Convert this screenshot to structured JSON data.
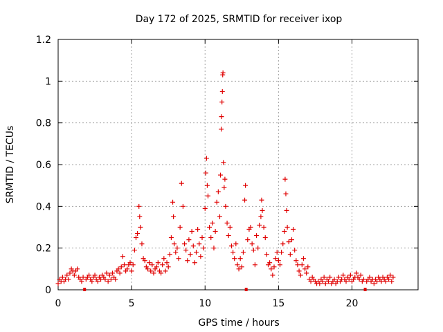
{
  "chart_data": {
    "type": "scatter",
    "title": "Day 172 of 2025, SRMTID for receiver ixop",
    "xlabel": "GPS time / hours",
    "ylabel": "SRMTID / TECUs",
    "xlim": [
      0,
      24.5
    ],
    "ylim": [
      0,
      1.2
    ],
    "xticks": [
      0,
      5,
      10,
      15,
      20
    ],
    "xtick_labels": [
      "0",
      "5",
      "10",
      "15",
      "20"
    ],
    "yticks": [
      0,
      0.2,
      0.4,
      0.6,
      0.8,
      1.0,
      1.2
    ],
    "ytick_labels": [
      "0",
      "0.2",
      "0.4",
      "0.6",
      "0.8",
      "1",
      "1.2"
    ],
    "grid": true,
    "marker": "+",
    "color": "#e00000",
    "gap_markers_x": [
      1.8,
      12.8,
      20.9
    ],
    "series": [
      {
        "name": "SRMTID",
        "points": [
          [
            0.0,
            0.03
          ],
          [
            0.1,
            0.05
          ],
          [
            0.2,
            0.04
          ],
          [
            0.3,
            0.06
          ],
          [
            0.4,
            0.04
          ],
          [
            0.5,
            0.05
          ],
          [
            0.6,
            0.07
          ],
          [
            0.7,
            0.05
          ],
          [
            0.8,
            0.08
          ],
          [
            0.9,
            0.1
          ],
          [
            1.0,
            0.09
          ],
          [
            1.1,
            0.07
          ],
          [
            1.2,
            0.09
          ],
          [
            1.3,
            0.1
          ],
          [
            1.4,
            0.06
          ],
          [
            1.5,
            0.05
          ],
          [
            1.6,
            0.04
          ],
          [
            1.7,
            0.06
          ],
          [
            1.9,
            0.05
          ],
          [
            2.0,
            0.06
          ],
          [
            2.1,
            0.07
          ],
          [
            2.2,
            0.05
          ],
          [
            2.3,
            0.04
          ],
          [
            2.4,
            0.06
          ],
          [
            2.5,
            0.07
          ],
          [
            2.6,
            0.05
          ],
          [
            2.7,
            0.04
          ],
          [
            2.8,
            0.06
          ],
          [
            2.9,
            0.05
          ],
          [
            3.0,
            0.07
          ],
          [
            3.1,
            0.06
          ],
          [
            3.2,
            0.05
          ],
          [
            3.3,
            0.08
          ],
          [
            3.4,
            0.04
          ],
          [
            3.5,
            0.07
          ],
          [
            3.6,
            0.05
          ],
          [
            3.7,
            0.08
          ],
          [
            3.8,
            0.06
          ],
          [
            3.9,
            0.05
          ],
          [
            4.0,
            0.09
          ],
          [
            4.1,
            0.1
          ],
          [
            4.2,
            0.08
          ],
          [
            4.3,
            0.11
          ],
          [
            4.4,
            0.16
          ],
          [
            4.5,
            0.12
          ],
          [
            4.6,
            0.09
          ],
          [
            4.7,
            0.1
          ],
          [
            4.8,
            0.12
          ],
          [
            4.9,
            0.13
          ],
          [
            5.0,
            0.09
          ],
          [
            5.1,
            0.12
          ],
          [
            5.2,
            0.19
          ],
          [
            5.3,
            0.25
          ],
          [
            5.4,
            0.27
          ],
          [
            5.5,
            0.4
          ],
          [
            5.55,
            0.35
          ],
          [
            5.6,
            0.3
          ],
          [
            5.7,
            0.22
          ],
          [
            5.8,
            0.15
          ],
          [
            5.9,
            0.14
          ],
          [
            6.0,
            0.11
          ],
          [
            6.1,
            0.1
          ],
          [
            6.2,
            0.13
          ],
          [
            6.3,
            0.09
          ],
          [
            6.4,
            0.12
          ],
          [
            6.5,
            0.08
          ],
          [
            6.6,
            0.1
          ],
          [
            6.7,
            0.11
          ],
          [
            6.8,
            0.13
          ],
          [
            6.9,
            0.09
          ],
          [
            7.0,
            0.08
          ],
          [
            7.1,
            0.12
          ],
          [
            7.2,
            0.15
          ],
          [
            7.3,
            0.09
          ],
          [
            7.4,
            0.13
          ],
          [
            7.5,
            0.11
          ],
          [
            7.6,
            0.17
          ],
          [
            7.7,
            0.25
          ],
          [
            7.8,
            0.42
          ],
          [
            7.85,
            0.35
          ],
          [
            7.9,
            0.22
          ],
          [
            8.0,
            0.18
          ],
          [
            8.1,
            0.2
          ],
          [
            8.2,
            0.15
          ],
          [
            8.3,
            0.3
          ],
          [
            8.4,
            0.51
          ],
          [
            8.5,
            0.4
          ],
          [
            8.6,
            0.22
          ],
          [
            8.7,
            0.19
          ],
          [
            8.8,
            0.14
          ],
          [
            8.9,
            0.24
          ],
          [
            9.0,
            0.17
          ],
          [
            9.1,
            0.28
          ],
          [
            9.2,
            0.21
          ],
          [
            9.3,
            0.13
          ],
          [
            9.4,
            0.18
          ],
          [
            9.5,
            0.29
          ],
          [
            9.6,
            0.22
          ],
          [
            9.7,
            0.16
          ],
          [
            9.8,
            0.25
          ],
          [
            9.9,
            0.2
          ],
          [
            10.0,
            0.39
          ],
          [
            10.05,
            0.56
          ],
          [
            10.1,
            0.63
          ],
          [
            10.15,
            0.5
          ],
          [
            10.2,
            0.45
          ],
          [
            10.3,
            0.3
          ],
          [
            10.4,
            0.25
          ],
          [
            10.5,
            0.32
          ],
          [
            10.6,
            0.2
          ],
          [
            10.7,
            0.28
          ],
          [
            10.8,
            0.42
          ],
          [
            10.9,
            0.47
          ],
          [
            11.0,
            0.35
          ],
          [
            11.05,
            0.55
          ],
          [
            11.1,
            0.77
          ],
          [
            11.12,
            0.83
          ],
          [
            11.15,
            0.9
          ],
          [
            11.18,
            0.95
          ],
          [
            11.2,
            1.03
          ],
          [
            11.22,
            1.04
          ],
          [
            11.25,
            0.61
          ],
          [
            11.3,
            0.49
          ],
          [
            11.35,
            0.53
          ],
          [
            11.4,
            0.4
          ],
          [
            11.5,
            0.32
          ],
          [
            11.6,
            0.26
          ],
          [
            11.7,
            0.3
          ],
          [
            11.8,
            0.21
          ],
          [
            11.9,
            0.18
          ],
          [
            12.0,
            0.15
          ],
          [
            12.1,
            0.22
          ],
          [
            12.2,
            0.12
          ],
          [
            12.3,
            0.1
          ],
          [
            12.4,
            0.15
          ],
          [
            12.5,
            0.11
          ],
          [
            12.6,
            0.18
          ],
          [
            12.7,
            0.43
          ],
          [
            12.75,
            0.5
          ],
          [
            12.9,
            0.24
          ],
          [
            13.0,
            0.29
          ],
          [
            13.1,
            0.3
          ],
          [
            13.2,
            0.22
          ],
          [
            13.3,
            0.19
          ],
          [
            13.4,
            0.12
          ],
          [
            13.5,
            0.26
          ],
          [
            13.6,
            0.2
          ],
          [
            13.7,
            0.31
          ],
          [
            13.8,
            0.35
          ],
          [
            13.85,
            0.43
          ],
          [
            13.9,
            0.38
          ],
          [
            14.0,
            0.3
          ],
          [
            14.1,
            0.25
          ],
          [
            14.2,
            0.17
          ],
          [
            14.3,
            0.12
          ],
          [
            14.4,
            0.13
          ],
          [
            14.5,
            0.1
          ],
          [
            14.6,
            0.07
          ],
          [
            14.7,
            0.11
          ],
          [
            14.8,
            0.15
          ],
          [
            14.9,
            0.18
          ],
          [
            15.0,
            0.14
          ],
          [
            15.1,
            0.12
          ],
          [
            15.2,
            0.18
          ],
          [
            15.3,
            0.22
          ],
          [
            15.4,
            0.28
          ],
          [
            15.45,
            0.53
          ],
          [
            15.5,
            0.46
          ],
          [
            15.55,
            0.38
          ],
          [
            15.6,
            0.3
          ],
          [
            15.7,
            0.23
          ],
          [
            15.8,
            0.17
          ],
          [
            15.9,
            0.24
          ],
          [
            16.0,
            0.29
          ],
          [
            16.1,
            0.19
          ],
          [
            16.2,
            0.14
          ],
          [
            16.3,
            0.12
          ],
          [
            16.4,
            0.09
          ],
          [
            16.5,
            0.07
          ],
          [
            16.6,
            0.12
          ],
          [
            16.7,
            0.15
          ],
          [
            16.8,
            0.1
          ],
          [
            16.9,
            0.08
          ],
          [
            17.0,
            0.11
          ],
          [
            17.1,
            0.05
          ],
          [
            17.2,
            0.04
          ],
          [
            17.3,
            0.06
          ],
          [
            17.4,
            0.05
          ],
          [
            17.5,
            0.04
          ],
          [
            17.6,
            0.03
          ],
          [
            17.7,
            0.04
          ],
          [
            17.8,
            0.03
          ],
          [
            17.9,
            0.05
          ],
          [
            18.0,
            0.04
          ],
          [
            18.1,
            0.06
          ],
          [
            18.2,
            0.03
          ],
          [
            18.3,
            0.05
          ],
          [
            18.4,
            0.04
          ],
          [
            18.5,
            0.06
          ],
          [
            18.6,
            0.03
          ],
          [
            18.7,
            0.04
          ],
          [
            18.8,
            0.05
          ],
          [
            18.9,
            0.03
          ],
          [
            19.0,
            0.04
          ],
          [
            19.1,
            0.06
          ],
          [
            19.2,
            0.04
          ],
          [
            19.3,
            0.05
          ],
          [
            19.4,
            0.07
          ],
          [
            19.5,
            0.05
          ],
          [
            19.6,
            0.04
          ],
          [
            19.7,
            0.06
          ],
          [
            19.8,
            0.05
          ],
          [
            19.9,
            0.07
          ],
          [
            20.0,
            0.04
          ],
          [
            20.1,
            0.05
          ],
          [
            20.2,
            0.06
          ],
          [
            20.3,
            0.08
          ],
          [
            20.4,
            0.06
          ],
          [
            20.5,
            0.05
          ],
          [
            20.6,
            0.07
          ],
          [
            20.7,
            0.04
          ],
          [
            20.8,
            0.05
          ],
          [
            21.0,
            0.04
          ],
          [
            21.1,
            0.05
          ],
          [
            21.2,
            0.06
          ],
          [
            21.3,
            0.04
          ],
          [
            21.4,
            0.05
          ],
          [
            21.5,
            0.03
          ],
          [
            21.6,
            0.05
          ],
          [
            21.7,
            0.04
          ],
          [
            21.8,
            0.06
          ],
          [
            21.9,
            0.05
          ],
          [
            22.0,
            0.04
          ],
          [
            22.1,
            0.06
          ],
          [
            22.2,
            0.05
          ],
          [
            22.3,
            0.04
          ],
          [
            22.4,
            0.06
          ],
          [
            22.5,
            0.05
          ],
          [
            22.6,
            0.07
          ],
          [
            22.7,
            0.04
          ],
          [
            22.8,
            0.06
          ]
        ]
      }
    ]
  }
}
